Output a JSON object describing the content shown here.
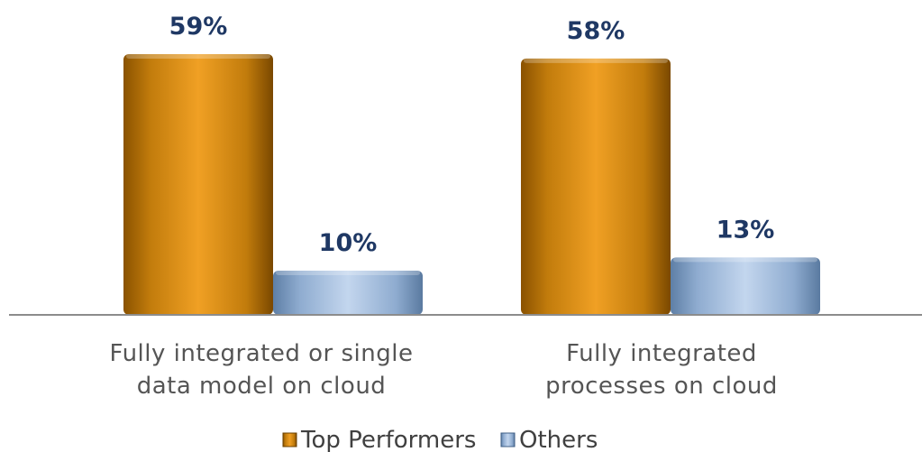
{
  "chart_data": {
    "type": "bar",
    "categories": [
      [
        "Fully integrated or single",
        "data model on cloud"
      ],
      [
        "Fully integrated",
        "processes on cloud"
      ]
    ],
    "series": [
      {
        "name": "Top Performers",
        "values": [
          59,
          58
        ],
        "labels": [
          "59%",
          "58%"
        ],
        "color": "#d48a12"
      },
      {
        "name": "Others",
        "values": [
          10,
          13
        ],
        "labels": [
          "10%",
          "13%"
        ],
        "color": "#95b3d7"
      }
    ],
    "ylim": [
      0,
      100
    ],
    "grid": false,
    "legend": "bottom",
    "title": "",
    "xlabel": "",
    "ylabel": ""
  }
}
